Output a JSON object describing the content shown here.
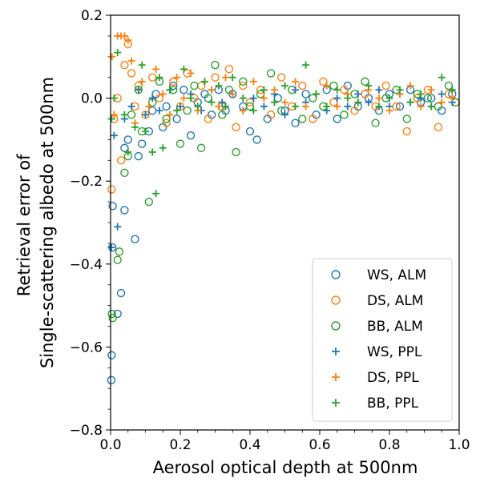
{
  "chart_data": {
    "type": "scatter",
    "xlabel": "Aerosol optical depth at 500nm",
    "ylabel_lines": [
      "Retrieval error of",
      "Single-scattering albedo at 500nm"
    ],
    "xlim": [
      0.0,
      1.0
    ],
    "ylim": [
      -0.8,
      0.2
    ],
    "x_ticks": [
      {
        "value": 0.0,
        "label": "0.0"
      },
      {
        "value": 0.2,
        "label": "0.2"
      },
      {
        "value": 0.4,
        "label": "0.4"
      },
      {
        "value": 0.6,
        "label": "0.6"
      },
      {
        "value": 0.8,
        "label": "0.8"
      },
      {
        "value": 1.0,
        "label": "1.0"
      }
    ],
    "y_ticks": [
      {
        "value": 0.2,
        "label": "0.2"
      },
      {
        "value": 0.0,
        "label": "0.0"
      },
      {
        "value": -0.2,
        "label": "−0.2"
      },
      {
        "value": -0.4,
        "label": "−0.4"
      },
      {
        "value": -0.6,
        "label": "−0.6"
      },
      {
        "value": -0.8,
        "label": "−0.8"
      }
    ],
    "x_minor_step": 0.05,
    "y_minor_step": 0.05,
    "grid": false,
    "legend": "lower-right",
    "series": [
      {
        "name": "WS, ALM",
        "marker": "circle",
        "color": "#1f77b4",
        "points": [
          [
            0.002,
            -0.68
          ],
          [
            0.003,
            -0.62
          ],
          [
            0.005,
            -0.36
          ],
          [
            0.006,
            -0.26
          ],
          [
            0.02,
            -0.52
          ],
          [
            0.03,
            -0.47
          ],
          [
            0.04,
            -0.27
          ],
          [
            0.04,
            -0.12
          ],
          [
            0.05,
            -0.1
          ],
          [
            0.07,
            -0.34
          ],
          [
            0.08,
            -0.14
          ],
          [
            0.09,
            -0.11
          ],
          [
            0.11,
            -0.08
          ],
          [
            0.12,
            -0.03
          ],
          [
            0.13,
            0.01
          ],
          [
            0.15,
            -0.07
          ],
          [
            0.16,
            -0.02
          ],
          [
            0.18,
            0.03
          ],
          [
            0.19,
            -0.05
          ],
          [
            0.21,
            0.02
          ],
          [
            0.23,
            -0.09
          ],
          [
            0.25,
            -0.01
          ],
          [
            0.27,
            0.01
          ],
          [
            0.29,
            -0.04
          ],
          [
            0.31,
            0.02
          ],
          [
            0.33,
            -0.03
          ],
          [
            0.35,
            0.01
          ],
          [
            0.38,
            -0.02
          ],
          [
            0.4,
            -0.08
          ],
          [
            0.42,
            -0.1
          ],
          [
            0.45,
            -0.05
          ],
          [
            0.48,
            0.0
          ],
          [
            0.5,
            -0.03
          ],
          [
            0.53,
            -0.06
          ],
          [
            0.56,
            0.01
          ],
          [
            0.59,
            -0.04
          ],
          [
            0.62,
            0.02
          ],
          [
            0.65,
            -0.05
          ],
          [
            0.68,
            0.03
          ],
          [
            0.71,
            -0.02
          ],
          [
            0.74,
            0.0
          ],
          [
            0.77,
            -0.03
          ],
          [
            0.8,
            0.01
          ],
          [
            0.83,
            -0.02
          ],
          [
            0.86,
            0.02
          ],
          [
            0.89,
            -0.01
          ],
          [
            0.92,
            0.0
          ],
          [
            0.95,
            -0.03
          ],
          [
            0.98,
            0.01
          ]
        ]
      },
      {
        "name": "DS, ALM",
        "marker": "circle",
        "color": "#ff7f0e",
        "points": [
          [
            0.003,
            -0.22
          ],
          [
            0.01,
            -0.05
          ],
          [
            0.02,
            0.0
          ],
          [
            0.03,
            -0.15
          ],
          [
            0.04,
            0.08
          ],
          [
            0.05,
            0.13
          ],
          [
            0.06,
            0.06
          ],
          [
            0.07,
            -0.02
          ],
          [
            0.08,
            0.03
          ],
          [
            0.1,
            -0.04
          ],
          [
            0.12,
            0.05
          ],
          [
            0.14,
            0.0
          ],
          [
            0.16,
            -0.06
          ],
          [
            0.18,
            0.04
          ],
          [
            0.2,
            -0.02
          ],
          [
            0.22,
            0.06
          ],
          [
            0.24,
            0.0
          ],
          [
            0.26,
            0.03
          ],
          [
            0.28,
            -0.05
          ],
          [
            0.3,
            0.05
          ],
          [
            0.32,
            -0.02
          ],
          [
            0.34,
            0.07
          ],
          [
            0.36,
            -0.07
          ],
          [
            0.38,
            0.03
          ],
          [
            0.4,
            -0.01
          ],
          [
            0.43,
            0.02
          ],
          [
            0.46,
            -0.04
          ],
          [
            0.49,
            0.05
          ],
          [
            0.52,
            -0.02
          ],
          [
            0.55,
            0.03
          ],
          [
            0.58,
            -0.05
          ],
          [
            0.61,
            0.04
          ],
          [
            0.64,
            -0.01
          ],
          [
            0.67,
            0.02
          ],
          [
            0.7,
            -0.03
          ],
          [
            0.73,
            0.01
          ],
          [
            0.76,
            -0.02
          ],
          [
            0.79,
            0.03
          ],
          [
            0.82,
            -0.02
          ],
          [
            0.85,
            -0.08
          ],
          [
            0.88,
            0.0
          ],
          [
            0.91,
            0.02
          ],
          [
            0.94,
            -0.07
          ],
          [
            0.97,
            0.01
          ],
          [
            0.99,
            -0.01
          ]
        ]
      },
      {
        "name": "BB, ALM",
        "marker": "circle",
        "color": "#2ca02c",
        "points": [
          [
            0.004,
            -0.52
          ],
          [
            0.006,
            -0.53
          ],
          [
            0.02,
            -0.39
          ],
          [
            0.025,
            -0.37
          ],
          [
            0.04,
            -0.18
          ],
          [
            0.05,
            -0.14
          ],
          [
            0.06,
            -0.04
          ],
          [
            0.08,
            0.02
          ],
          [
            0.09,
            -0.08
          ],
          [
            0.11,
            -0.25
          ],
          [
            0.12,
            -0.01
          ],
          [
            0.14,
            0.04
          ],
          [
            0.16,
            -0.05
          ],
          [
            0.18,
            0.02
          ],
          [
            0.2,
            -0.11
          ],
          [
            0.22,
            -0.03
          ],
          [
            0.24,
            0.03
          ],
          [
            0.26,
            -0.12
          ],
          [
            0.28,
            0.0
          ],
          [
            0.3,
            0.08
          ],
          [
            0.32,
            -0.04
          ],
          [
            0.34,
            0.02
          ],
          [
            0.36,
            -0.13
          ],
          [
            0.38,
            0.04
          ],
          [
            0.4,
            -0.02
          ],
          [
            0.43,
            0.01
          ],
          [
            0.46,
            0.06
          ],
          [
            0.49,
            -0.03
          ],
          [
            0.52,
            0.02
          ],
          [
            0.55,
            -0.05
          ],
          [
            0.58,
            0.0
          ],
          [
            0.61,
            -0.02
          ],
          [
            0.64,
            0.03
          ],
          [
            0.67,
            -0.04
          ],
          [
            0.7,
            0.01
          ],
          [
            0.73,
            0.04
          ],
          [
            0.76,
            -0.06
          ],
          [
            0.79,
            0.0
          ],
          [
            0.82,
            0.02
          ],
          [
            0.85,
            -0.05
          ],
          [
            0.88,
            0.01
          ],
          [
            0.91,
            0.0
          ],
          [
            0.94,
            -0.02
          ],
          [
            0.97,
            0.03
          ],
          [
            0.99,
            -0.01
          ]
        ]
      },
      {
        "name": "WS, PPL",
        "marker": "plus",
        "color": "#1f77b4",
        "points": [
          [
            0.002,
            -0.36
          ],
          [
            0.01,
            -0.09
          ],
          [
            0.02,
            -0.31
          ],
          [
            0.04,
            -0.05
          ],
          [
            0.06,
            -0.02
          ],
          [
            0.08,
            0.02
          ],
          [
            0.1,
            -0.04
          ],
          [
            0.12,
            0.0
          ],
          [
            0.14,
            -0.03
          ],
          [
            0.17,
            0.02
          ],
          [
            0.2,
            -0.02
          ],
          [
            0.23,
            0.01
          ],
          [
            0.26,
            -0.03
          ],
          [
            0.29,
            0.02
          ],
          [
            0.32,
            -0.01
          ],
          [
            0.35,
            0.01
          ],
          [
            0.38,
            -0.03
          ],
          [
            0.41,
            0.0
          ],
          [
            0.44,
            -0.02
          ],
          [
            0.47,
            0.01
          ],
          [
            0.5,
            -0.04
          ],
          [
            0.53,
            0.02
          ],
          [
            0.56,
            -0.01
          ],
          [
            0.59,
            0.01
          ],
          [
            0.62,
            -0.03
          ],
          [
            0.65,
            0.0
          ],
          [
            0.68,
            -0.02
          ],
          [
            0.71,
            0.01
          ],
          [
            0.74,
            -0.01
          ],
          [
            0.77,
            0.02
          ],
          [
            0.8,
            -0.02
          ],
          [
            0.83,
            0.01
          ],
          [
            0.86,
            -0.01
          ],
          [
            0.89,
            0.0
          ],
          [
            0.92,
            -0.02
          ],
          [
            0.95,
            0.01
          ],
          [
            0.98,
            -0.01
          ]
        ]
      },
      {
        "name": "DS, PPL",
        "marker": "plus",
        "color": "#ff7f0e",
        "points": [
          [
            0.004,
            0.1
          ],
          [
            0.01,
            -0.04
          ],
          [
            0.02,
            0.15
          ],
          [
            0.03,
            0.15
          ],
          [
            0.04,
            0.15
          ],
          [
            0.05,
            0.14
          ],
          [
            0.06,
            0.09
          ],
          [
            0.07,
            -0.06
          ],
          [
            0.09,
            0.04
          ],
          [
            0.11,
            -0.02
          ],
          [
            0.13,
            0.07
          ],
          [
            0.15,
            0.01
          ],
          [
            0.17,
            -0.04
          ],
          [
            0.19,
            0.05
          ],
          [
            0.21,
            0.0
          ],
          [
            0.23,
            0.06
          ],
          [
            0.25,
            -0.03
          ],
          [
            0.27,
            0.04
          ],
          [
            0.29,
            0.02
          ],
          [
            0.31,
            -0.02
          ],
          [
            0.33,
            0.05
          ],
          [
            0.35,
            0.01
          ],
          [
            0.38,
            -0.03
          ],
          [
            0.41,
            0.04
          ],
          [
            0.44,
            0.0
          ],
          [
            0.47,
            0.02
          ],
          [
            0.5,
            -0.01
          ],
          [
            0.53,
            0.04
          ],
          [
            0.56,
            -0.02
          ],
          [
            0.59,
            0.01
          ],
          [
            0.62,
            0.03
          ],
          [
            0.65,
            -0.02
          ],
          [
            0.68,
            0.01
          ],
          [
            0.71,
            -0.01
          ],
          [
            0.74,
            0.02
          ],
          [
            0.77,
            0.0
          ],
          [
            0.8,
            -0.03
          ],
          [
            0.83,
            0.01
          ],
          [
            0.86,
            0.03
          ],
          [
            0.89,
            -0.02
          ],
          [
            0.92,
            0.02
          ],
          [
            0.95,
            -0.01
          ],
          [
            0.98,
            0.0
          ]
        ]
      },
      {
        "name": "BB, PPL",
        "marker": "plus",
        "color": "#2ca02c",
        "points": [
          [
            0.003,
            -0.05
          ],
          [
            0.01,
            0.0
          ],
          [
            0.02,
            0.11
          ],
          [
            0.04,
            -0.04
          ],
          [
            0.05,
            -0.13
          ],
          [
            0.07,
            -0.07
          ],
          [
            0.09,
            0.08
          ],
          [
            0.1,
            -0.08
          ],
          [
            0.12,
            -0.13
          ],
          [
            0.13,
            -0.23
          ],
          [
            0.14,
            0.05
          ],
          [
            0.15,
            -0.12
          ],
          [
            0.17,
            0.02
          ],
          [
            0.19,
            -0.03
          ],
          [
            0.21,
            0.07
          ],
          [
            0.23,
            0.0
          ],
          [
            0.25,
            -0.02
          ],
          [
            0.27,
            0.04
          ],
          [
            0.29,
            -0.01
          ],
          [
            0.31,
            0.03
          ],
          [
            0.33,
            -0.02
          ],
          [
            0.35,
            0.05
          ],
          [
            0.38,
            0.0
          ],
          [
            0.41,
            -0.03
          ],
          [
            0.44,
            0.02
          ],
          [
            0.47,
            -0.01
          ],
          [
            0.5,
            0.03
          ],
          [
            0.53,
            -0.02
          ],
          [
            0.56,
            0.08
          ],
          [
            0.59,
            0.01
          ],
          [
            0.62,
            -0.02
          ],
          [
            0.65,
            0.02
          ],
          [
            0.68,
            0.0
          ],
          [
            0.71,
            -0.01
          ],
          [
            0.74,
            0.03
          ],
          [
            0.77,
            -0.02
          ],
          [
            0.8,
            0.0
          ],
          [
            0.83,
            0.02
          ],
          [
            0.86,
            -0.01
          ],
          [
            0.89,
            0.01
          ],
          [
            0.92,
            -0.02
          ],
          [
            0.95,
            0.05
          ],
          [
            0.98,
            0.02
          ]
        ]
      }
    ]
  }
}
